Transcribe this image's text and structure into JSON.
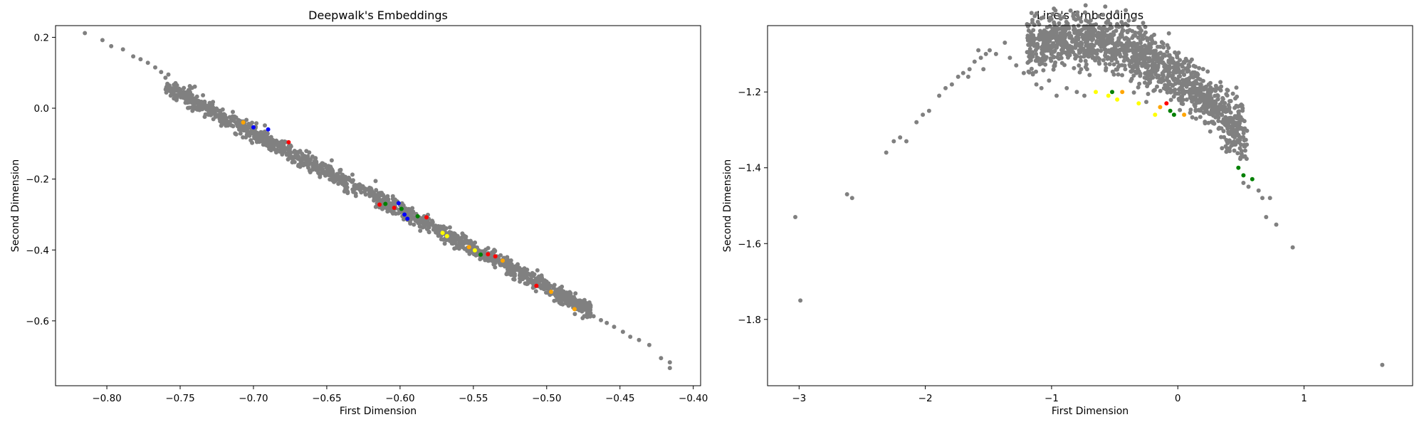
{
  "charts": [
    {
      "type": "scatter",
      "title": "Deepwalk's Embeddings",
      "xlabel": "First Dimension",
      "ylabel": "Second Dimension",
      "xlim": [
        -0.835,
        -0.395
      ],
      "ylim": [
        -0.783,
        0.233
      ],
      "xticks": [
        -0.8,
        -0.75,
        -0.7,
        -0.65,
        -0.6,
        -0.55,
        -0.5,
        -0.45,
        -0.4
      ],
      "xtick_labels": [
        "−0.80",
        "−0.75",
        "−0.70",
        "−0.65",
        "−0.60",
        "−0.55",
        "−0.50",
        "−0.45",
        "−0.40"
      ],
      "yticks": [
        0.2,
        0.0,
        -0.2,
        -0.4,
        -0.6
      ],
      "ytick_labels": [
        "0.2",
        "0.0",
        "−0.2",
        "−0.4",
        "−0.6"
      ],
      "grid": false,
      "band": {
        "x0": -0.76,
        "x1": -0.47,
        "slope": -2.18,
        "intercept": -1.595,
        "n": 1500,
        "spread": 0.012,
        "seed": 11
      },
      "points": [
        {
          "x": -0.815,
          "y": 0.212,
          "c": "gray"
        },
        {
          "x": -0.803,
          "y": 0.192,
          "c": "gray"
        },
        {
          "x": -0.797,
          "y": 0.175,
          "c": "gray"
        },
        {
          "x": -0.789,
          "y": 0.166,
          "c": "gray"
        },
        {
          "x": -0.782,
          "y": 0.146,
          "c": "gray"
        },
        {
          "x": -0.777,
          "y": 0.138,
          "c": "gray"
        },
        {
          "x": -0.772,
          "y": 0.128,
          "c": "gray"
        },
        {
          "x": -0.767,
          "y": 0.115,
          "c": "gray"
        },
        {
          "x": -0.763,
          "y": 0.102,
          "c": "gray"
        },
        {
          "x": -0.758,
          "y": 0.095,
          "c": "gray"
        },
        {
          "x": -0.468,
          "y": -0.587,
          "c": "gray"
        },
        {
          "x": -0.463,
          "y": -0.598,
          "c": "gray"
        },
        {
          "x": -0.459,
          "y": -0.606,
          "c": "gray"
        },
        {
          "x": -0.454,
          "y": -0.617,
          "c": "gray"
        },
        {
          "x": -0.448,
          "y": -0.631,
          "c": "gray"
        },
        {
          "x": -0.443,
          "y": -0.645,
          "c": "gray"
        },
        {
          "x": -0.437,
          "y": -0.654,
          "c": "gray"
        },
        {
          "x": -0.43,
          "y": -0.668,
          "c": "gray"
        },
        {
          "x": -0.422,
          "y": -0.705,
          "c": "gray"
        },
        {
          "x": -0.416,
          "y": -0.717,
          "c": "gray"
        },
        {
          "x": -0.416,
          "y": -0.733,
          "c": "gray"
        },
        {
          "x": -0.707,
          "y": -0.04,
          "c": "orange"
        },
        {
          "x": -0.7,
          "y": -0.054,
          "c": "blue"
        },
        {
          "x": -0.676,
          "y": -0.096,
          "c": "red"
        },
        {
          "x": -0.69,
          "y": -0.06,
          "c": "blue"
        },
        {
          "x": -0.61,
          "y": -0.27,
          "c": "green"
        },
        {
          "x": -0.614,
          "y": -0.272,
          "c": "red"
        },
        {
          "x": -0.604,
          "y": -0.281,
          "c": "red"
        },
        {
          "x": -0.601,
          "y": -0.268,
          "c": "blue"
        },
        {
          "x": -0.599,
          "y": -0.284,
          "c": "green"
        },
        {
          "x": -0.597,
          "y": -0.3,
          "c": "blue"
        },
        {
          "x": -0.595,
          "y": -0.312,
          "c": "blue"
        },
        {
          "x": -0.588,
          "y": -0.305,
          "c": "green"
        },
        {
          "x": -0.582,
          "y": -0.308,
          "c": "red"
        },
        {
          "x": -0.571,
          "y": -0.352,
          "c": "yellow"
        },
        {
          "x": -0.568,
          "y": -0.361,
          "c": "yellow"
        },
        {
          "x": -0.553,
          "y": -0.392,
          "c": "orange"
        },
        {
          "x": -0.549,
          "y": -0.401,
          "c": "yellow"
        },
        {
          "x": -0.545,
          "y": -0.413,
          "c": "green"
        },
        {
          "x": -0.54,
          "y": -0.412,
          "c": "red"
        },
        {
          "x": -0.535,
          "y": -0.418,
          "c": "red"
        },
        {
          "x": -0.53,
          "y": -0.43,
          "c": "orange"
        },
        {
          "x": -0.507,
          "y": -0.501,
          "c": "red"
        },
        {
          "x": -0.497,
          "y": -0.518,
          "c": "orange"
        },
        {
          "x": -0.481,
          "y": -0.567,
          "c": "orange"
        }
      ]
    },
    {
      "type": "scatter",
      "title": "Line's Embeddings",
      "xlabel": "First Dimension",
      "ylabel": "Second Dimension",
      "xlim": [
        -3.25,
        1.86
      ],
      "ylim": [
        -1.975,
        -1.025
      ],
      "xticks": [
        -3,
        -2,
        -1,
        0,
        1
      ],
      "xtick_labels": [
        "−3",
        "−2",
        "−1",
        "0",
        "1"
      ],
      "yticks": [
        -1.2,
        -1.4,
        -1.6,
        -1.8
      ],
      "ytick_labels": [
        "−1.2",
        "−1.4",
        "−1.6",
        "−1.8"
      ],
      "grid": false,
      "band": {
        "poly": [
          -1.16,
          -0.23,
          -0.135
        ],
        "x0": -1.2,
        "x1": 0.55,
        "spread": 0.035,
        "n": 1500,
        "seed": 29
      },
      "points": [
        {
          "x": -3.03,
          "y": -1.53,
          "c": "gray"
        },
        {
          "x": -2.99,
          "y": -1.75,
          "c": "gray"
        },
        {
          "x": -2.62,
          "y": -1.47,
          "c": "gray"
        },
        {
          "x": -2.58,
          "y": -1.48,
          "c": "gray"
        },
        {
          "x": -2.31,
          "y": -1.36,
          "c": "gray"
        },
        {
          "x": -2.25,
          "y": -1.33,
          "c": "gray"
        },
        {
          "x": -2.2,
          "y": -1.32,
          "c": "gray"
        },
        {
          "x": -2.15,
          "y": -1.33,
          "c": "gray"
        },
        {
          "x": -2.07,
          "y": -1.28,
          "c": "gray"
        },
        {
          "x": -2.02,
          "y": -1.26,
          "c": "gray"
        },
        {
          "x": -1.97,
          "y": -1.25,
          "c": "gray"
        },
        {
          "x": -1.89,
          "y": -1.21,
          "c": "gray"
        },
        {
          "x": -1.84,
          "y": -1.19,
          "c": "gray"
        },
        {
          "x": -1.79,
          "y": -1.18,
          "c": "gray"
        },
        {
          "x": -1.74,
          "y": -1.16,
          "c": "gray"
        },
        {
          "x": -1.7,
          "y": -1.15,
          "c": "gray"
        },
        {
          "x": -1.65,
          "y": -1.14,
          "c": "gray"
        },
        {
          "x": -1.61,
          "y": -1.12,
          "c": "gray"
        },
        {
          "x": -1.56,
          "y": -1.11,
          "c": "gray"
        },
        {
          "x": -1.52,
          "y": -1.1,
          "c": "gray"
        },
        {
          "x": -1.58,
          "y": -1.09,
          "c": "gray"
        },
        {
          "x": -1.49,
          "y": -1.09,
          "c": "gray"
        },
        {
          "x": -1.44,
          "y": -1.1,
          "c": "gray"
        },
        {
          "x": -1.37,
          "y": -1.07,
          "c": "gray"
        },
        {
          "x": -1.33,
          "y": -1.11,
          "c": "gray"
        },
        {
          "x": -1.28,
          "y": -1.13,
          "c": "gray"
        },
        {
          "x": -1.66,
          "y": -1.16,
          "c": "gray"
        },
        {
          "x": -1.54,
          "y": -1.14,
          "c": "gray"
        },
        {
          "x": -1.22,
          "y": -1.15,
          "c": "gray"
        },
        {
          "x": -1.18,
          "y": -1.12,
          "c": "gray"
        },
        {
          "x": -1.12,
          "y": -1.18,
          "c": "gray"
        },
        {
          "x": -1.08,
          "y": -1.19,
          "c": "gray"
        },
        {
          "x": -1.02,
          "y": -1.17,
          "c": "gray"
        },
        {
          "x": -0.96,
          "y": -1.21,
          "c": "gray"
        },
        {
          "x": -0.88,
          "y": -1.19,
          "c": "gray"
        },
        {
          "x": -0.8,
          "y": -1.2,
          "c": "gray"
        },
        {
          "x": -0.74,
          "y": -1.21,
          "c": "gray"
        },
        {
          "x": 0.52,
          "y": -1.44,
          "c": "gray"
        },
        {
          "x": 0.56,
          "y": -1.45,
          "c": "gray"
        },
        {
          "x": 0.64,
          "y": -1.46,
          "c": "gray"
        },
        {
          "x": 0.67,
          "y": -1.48,
          "c": "gray"
        },
        {
          "x": 0.73,
          "y": -1.48,
          "c": "gray"
        },
        {
          "x": 0.7,
          "y": -1.53,
          "c": "gray"
        },
        {
          "x": 0.78,
          "y": -1.55,
          "c": "gray"
        },
        {
          "x": 0.91,
          "y": -1.61,
          "c": "gray"
        },
        {
          "x": 1.62,
          "y": -1.92,
          "c": "gray"
        },
        {
          "x": -0.65,
          "y": -1.2,
          "c": "yellow"
        },
        {
          "x": -0.55,
          "y": -1.21,
          "c": "yellow"
        },
        {
          "x": -0.52,
          "y": -1.2,
          "c": "green"
        },
        {
          "x": -0.48,
          "y": -1.22,
          "c": "yellow"
        },
        {
          "x": -0.44,
          "y": -1.2,
          "c": "orange"
        },
        {
          "x": -0.31,
          "y": -1.23,
          "c": "yellow"
        },
        {
          "x": -0.18,
          "y": -1.26,
          "c": "yellow"
        },
        {
          "x": -0.14,
          "y": -1.24,
          "c": "orange"
        },
        {
          "x": -0.09,
          "y": -1.23,
          "c": "red"
        },
        {
          "x": -0.06,
          "y": -1.25,
          "c": "green"
        },
        {
          "x": -0.03,
          "y": -1.26,
          "c": "green"
        },
        {
          "x": 0.05,
          "y": -1.26,
          "c": "orange"
        },
        {
          "x": 0.48,
          "y": -1.4,
          "c": "green"
        },
        {
          "x": 0.52,
          "y": -1.42,
          "c": "green"
        },
        {
          "x": 0.59,
          "y": -1.43,
          "c": "green"
        }
      ]
    }
  ],
  "colors": {
    "gray": "#808080",
    "blue": "#0000ff",
    "red": "#ff0000",
    "green": "#008000",
    "orange": "#ffa500",
    "yellow": "#ffff00",
    "axis": "#000000"
  }
}
